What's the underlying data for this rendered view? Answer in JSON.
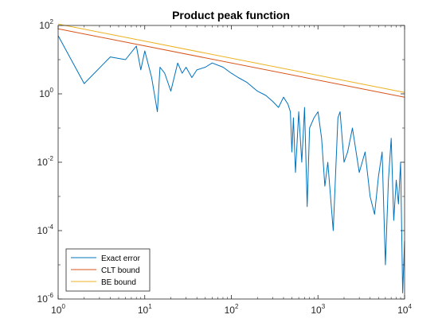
{
  "chart_data": {
    "type": "line",
    "title": "Product peak function",
    "xlabel": "",
    "ylabel": "",
    "xscale": "log",
    "yscale": "log",
    "xlim": [
      1,
      10000
    ],
    "ylim": [
      1e-06,
      100
    ],
    "grid": false,
    "legend_position": "bottom-left",
    "x_ticks": [
      {
        "value": 1,
        "base": "10",
        "exp": "0"
      },
      {
        "value": 10,
        "base": "10",
        "exp": "1"
      },
      {
        "value": 100,
        "base": "10",
        "exp": "2"
      },
      {
        "value": 1000,
        "base": "10",
        "exp": "3"
      },
      {
        "value": 10000,
        "base": "10",
        "exp": "4"
      }
    ],
    "y_ticks": [
      {
        "value": 1e-06,
        "base": "10",
        "exp": "-6"
      },
      {
        "value": 0.0001,
        "base": "10",
        "exp": "-4"
      },
      {
        "value": 0.01,
        "base": "10",
        "exp": "-2"
      },
      {
        "value": 1,
        "base": "10",
        "exp": "0"
      },
      {
        "value": 100,
        "base": "10",
        "exp": "2"
      }
    ],
    "series": [
      {
        "name": "Exact error",
        "color": "#0072BD",
        "x": [
          1,
          2,
          4,
          6,
          8,
          9,
          10,
          12,
          14,
          15,
          17,
          20,
          24,
          27,
          30,
          35,
          40,
          50,
          60,
          80,
          100,
          120,
          150,
          200,
          250,
          300,
          350,
          400,
          450,
          480,
          500,
          520,
          550,
          600,
          650,
          700,
          750,
          800,
          900,
          1000,
          1100,
          1200,
          1300,
          1500,
          1700,
          1800,
          2000,
          2200,
          2500,
          3000,
          3500,
          4000,
          4500,
          5000,
          5500,
          6000,
          6500,
          7000,
          7500,
          8000,
          8500,
          9000,
          9500,
          10000
        ],
        "y": [
          50,
          2,
          12,
          10,
          25,
          5,
          18,
          3,
          0.3,
          6,
          4,
          1.2,
          8,
          4,
          6,
          3,
          5,
          6,
          8,
          6,
          4,
          3,
          2.2,
          1.2,
          0.9,
          0.6,
          0.4,
          0.8,
          0.5,
          0.3,
          0.02,
          0.2,
          0.005,
          0.3,
          0.01,
          0.4,
          0.0005,
          0.1,
          0.2,
          0.3,
          0.05,
          0.002,
          0.01,
          0.0001,
          0.2,
          0.3,
          0.01,
          0.02,
          0.1,
          0.005,
          0.02,
          0.001,
          0.0003,
          0.004,
          0.02,
          1e-05,
          0.003,
          0.05,
          0.0002,
          0.003,
          0.0006,
          0.01,
          1.5e-06,
          5e-05
        ]
      },
      {
        "name": "CLT bound",
        "color": "#D95319",
        "x": [
          1,
          10000
        ],
        "y": [
          80,
          0.8
        ]
      },
      {
        "name": "BE bound",
        "color": "#EDB120",
        "x": [
          1,
          10000
        ],
        "y": [
          110,
          1.1
        ]
      }
    ]
  }
}
